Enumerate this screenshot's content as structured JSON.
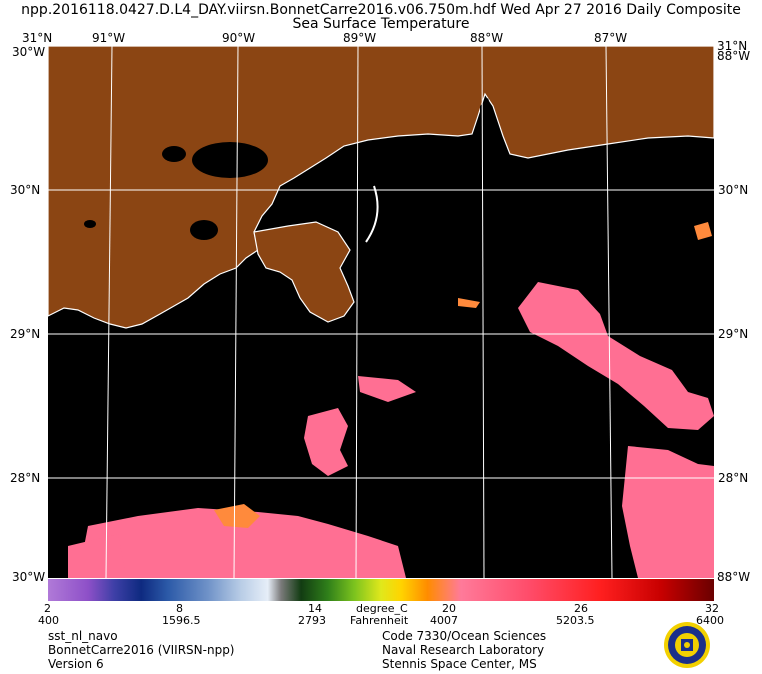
{
  "header": {
    "title_line1": "npp.2016118.0427.D.L4_DAY.viirsn.BonnetCarre2016.v06.750m.hdf    Wed Apr 27 2016 Daily Composite",
    "title_line2": "Sea Surface Temperature"
  },
  "map": {
    "lon_labels": [
      "91°W",
      "90°W",
      "89°W",
      "88°W",
      "87°W"
    ],
    "lat_labels": [
      "31°N",
      "30°N",
      "29°N",
      "28°N"
    ],
    "corner_top": "30°W",
    "corner_bottom": "30°W",
    "corner_top_right": "88°W",
    "corner_bottom_right": "88°W",
    "land_color": "#8b4513",
    "water_color": "#000000"
  },
  "colorbar": {
    "celsius_ticks": [
      "2",
      "8",
      "14",
      "20",
      "26",
      "32"
    ],
    "fahrenheit_ticks": [
      "400",
      "1596.5",
      "2793",
      "4007",
      "5203.5",
      "6400"
    ],
    "unit_c": "degree_C",
    "unit_f": "Fahrenheit"
  },
  "footer": {
    "left": [
      "sst_nl_navo",
      "BonnetCarre2016 (VIIRSN-npp)",
      "Version 6"
    ],
    "right": [
      "Code 7330/Ocean Sciences",
      "Naval Research Laboratory",
      "Stennis Space Center, MS"
    ]
  }
}
